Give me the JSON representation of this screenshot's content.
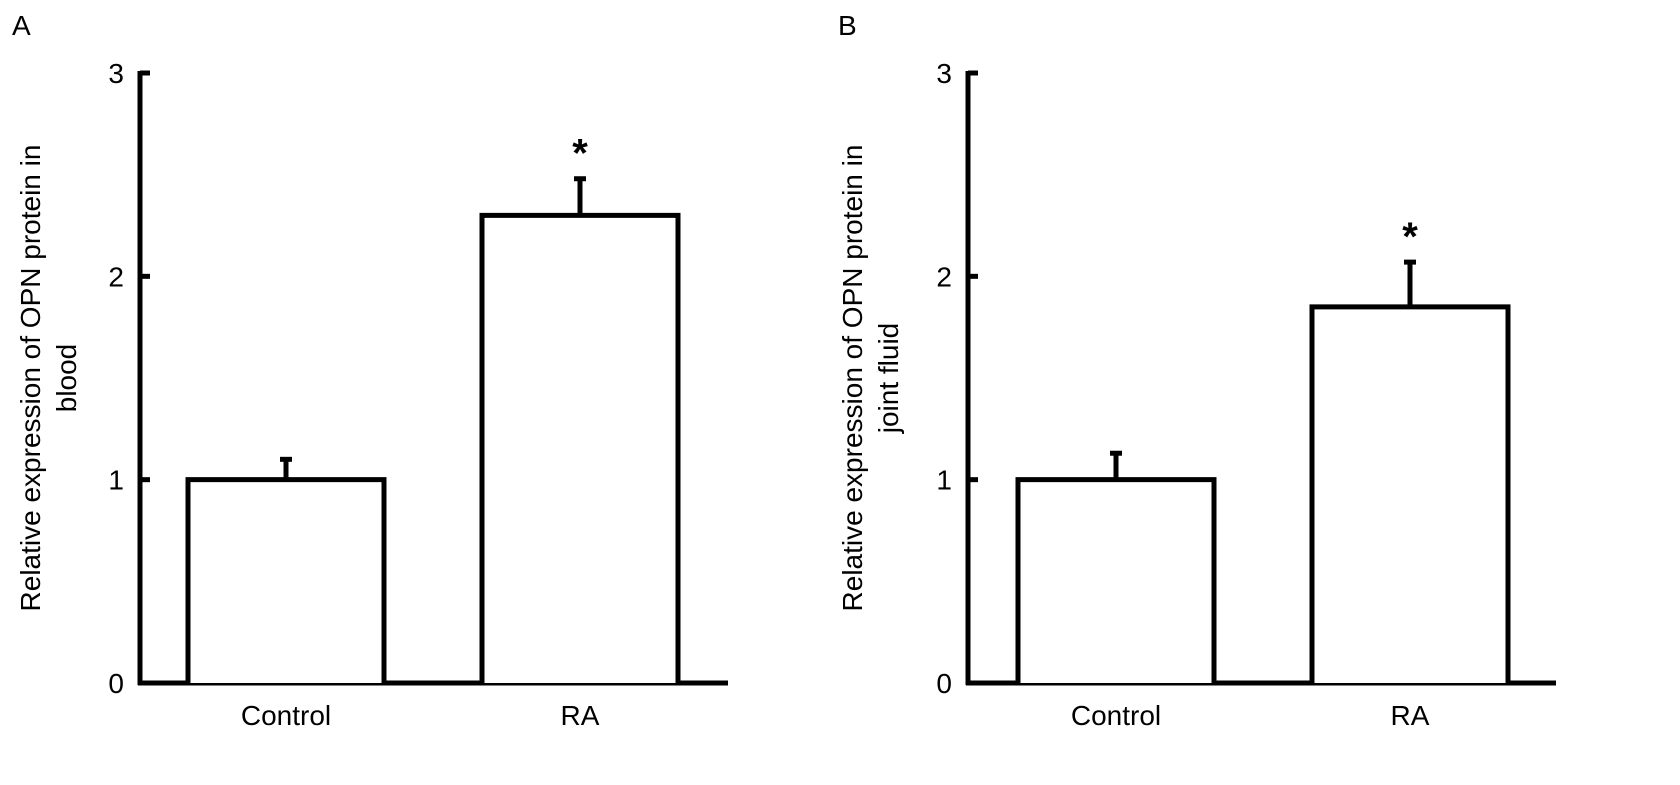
{
  "chart_data": [
    {
      "panel_label": "A",
      "type": "bar",
      "categories": [
        "Control",
        "RA"
      ],
      "values": [
        1.0,
        2.3
      ],
      "errors": [
        0.1,
        0.18
      ],
      "significance": [
        "",
        "*"
      ],
      "ylabel_lines": [
        "Relative expression of OPN protein in",
        "blood"
      ],
      "xlabel": "",
      "ylim": [
        0,
        3
      ],
      "yticks": [
        "0",
        "1",
        "2",
        "3"
      ],
      "grid": false,
      "legend": "none"
    },
    {
      "panel_label": "B",
      "type": "bar",
      "categories": [
        "Control",
        "RA"
      ],
      "values": [
        1.0,
        1.85
      ],
      "errors": [
        0.13,
        0.22
      ],
      "significance": [
        "",
        "*"
      ],
      "ylabel_lines": [
        "Relative expression of OPN protein in",
        "joint fluid"
      ],
      "xlabel": "",
      "ylim": [
        0,
        3
      ],
      "yticks": [
        "0",
        "1",
        "2",
        "3"
      ],
      "grid": false,
      "legend": "none"
    }
  ]
}
